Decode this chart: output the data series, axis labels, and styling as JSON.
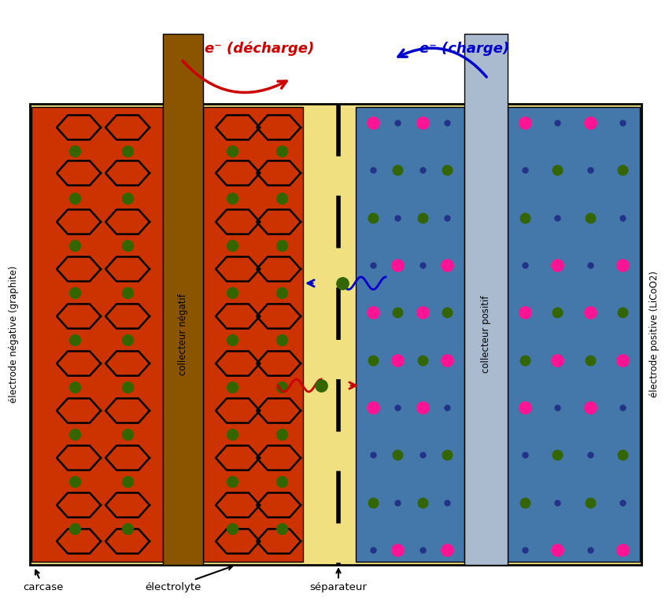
{
  "bg_color": "#f0e080",
  "outer_border_color": "#000000",
  "neg_electrode_color": "#cc3300",
  "neg_collector_color": "#8b5500",
  "pos_electrode_color": "#4477aa",
  "pos_collector_color": "#aabbd0",
  "li_ion_color": "#336600",
  "pink_dot_color": "#ff1493",
  "blue_dot_color": "#223388",
  "arrow_red_color": "#cc0000",
  "arrow_blue_color": "#0000cc",
  "label_neg_electrode": "électrode négative (graphite)",
  "label_neg_collector": "collecteur négatif",
  "label_pos_collector": "collecteur positif",
  "label_pos_electrode": "électrode positive (LiCoO2)",
  "label_discharge": "e⁻ (décharge)",
  "label_charge": "e⁻ (charge)",
  "label_carcase": "carcase",
  "label_electrolyte": "électrolyte",
  "label_separator": "séparateur"
}
